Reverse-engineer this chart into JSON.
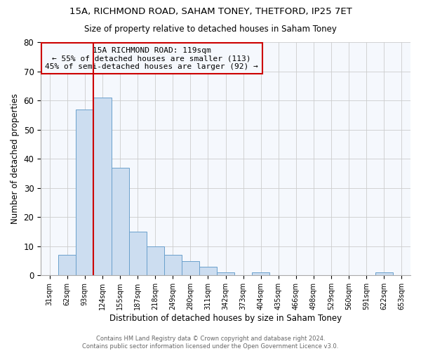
{
  "title1": "15A, RICHMOND ROAD, SAHAM TONEY, THETFORD, IP25 7ET",
  "title2": "Size of property relative to detached houses in Saham Toney",
  "xlabel": "Distribution of detached houses by size in Saham Toney",
  "ylabel": "Number of detached properties",
  "bar_labels": [
    "31sqm",
    "62sqm",
    "93sqm",
    "124sqm",
    "155sqm",
    "187sqm",
    "218sqm",
    "249sqm",
    "280sqm",
    "311sqm",
    "342sqm",
    "373sqm",
    "404sqm",
    "435sqm",
    "466sqm",
    "498sqm",
    "529sqm",
    "560sqm",
    "591sqm",
    "622sqm",
    "653sqm"
  ],
  "bar_heights": [
    0,
    7,
    57,
    61,
    37,
    15,
    10,
    7,
    5,
    3,
    1,
    0,
    1,
    0,
    0,
    0,
    0,
    0,
    0,
    1,
    0
  ],
  "bar_color": "#ccddf0",
  "bar_edge_color": "#6aa0cc",
  "bar_width": 1.0,
  "vline_position": 2.5,
  "vline_color": "#cc0000",
  "ylim_min": 0,
  "ylim_max": 80,
  "yticks": [
    0,
    10,
    20,
    30,
    40,
    50,
    60,
    70,
    80
  ],
  "annotation_title": "15A RICHMOND ROAD: 119sqm",
  "annotation_line1": "← 55% of detached houses are smaller (113)",
  "annotation_line2": "45% of semi-detached houses are larger (92) →",
  "annotation_box_color": "#cc0000",
  "footer1": "Contains HM Land Registry data © Crown copyright and database right 2024.",
  "footer2": "Contains public sector information licensed under the Open Government Licence v3.0.",
  "grid_color": "#cccccc",
  "bg_color": "#ffffff",
  "plot_bg_color": "#f5f8fd"
}
